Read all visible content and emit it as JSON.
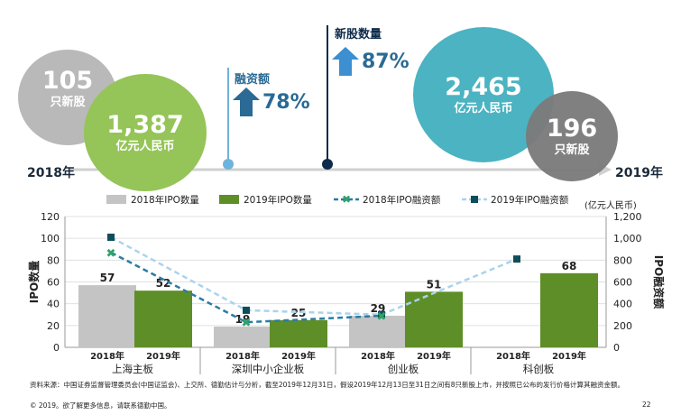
{
  "colors": {
    "gray": "#b3b3b3",
    "darkgray": "#7d7d7d",
    "green": "#93c15a",
    "teal": "#49b5c3",
    "navy": "#2a6a94",
    "lightblue": "#6db4dc",
    "darknavy": "#0d2a4a",
    "bar2019": "#5e8e27",
    "bar2018": "#c4c4c4",
    "line2018": "#2a7ca6",
    "line2019": "#a9d3ec",
    "marker2018": "#2fa36a",
    "marker2019": "#0e4e5a"
  },
  "timeline": {
    "start_label": "2018年",
    "end_label": "2019年"
  },
  "bubbles": {
    "ipo_count_2018": {
      "value": "105",
      "unit": "只新股"
    },
    "funds_2018": {
      "value": "1,387",
      "unit": "亿元人民币"
    },
    "funds_2019": {
      "value": "2,465",
      "unit": "亿元人民币"
    },
    "ipo_count_2019": {
      "value": "196",
      "unit": "只新股"
    }
  },
  "growth": {
    "funds": {
      "label": "融资额",
      "pct": "78%"
    },
    "count": {
      "label": "新股数量",
      "pct": "87%"
    }
  },
  "chart_data": {
    "type": "bar",
    "categories": [
      "上海主板",
      "深圳中小企业板",
      "创业板",
      "科创板"
    ],
    "sub_labels": [
      "2018年",
      "2019年"
    ],
    "series": [
      {
        "name": "2018年IPO数量",
        "kind": "bar",
        "values": [
          57,
          19,
          29,
          null
        ],
        "axis": "left"
      },
      {
        "name": "2019年IPO数量",
        "kind": "bar",
        "values": [
          52,
          25,
          51,
          68
        ],
        "axis": "left"
      },
      {
        "name": "2018年IPO融资额",
        "kind": "line",
        "values": [
          870,
          230,
          290,
          null
        ],
        "axis": "right"
      },
      {
        "name": "2019年IPO融资额",
        "kind": "line",
        "values": [
          1010,
          340,
          300,
          810
        ],
        "axis": "right"
      }
    ],
    "ylabel": "IPO数量",
    "y2label": "IPO融资额",
    "y2unit": "(亿元人民币)",
    "ylim": [
      0,
      120
    ],
    "y2lim": [
      0,
      1200
    ],
    "yticks": [
      "0",
      "20",
      "40",
      "60",
      "80",
      "100",
      "120"
    ],
    "y2ticks": [
      "0",
      "200",
      "400",
      "600",
      "800",
      "1,000",
      "1,200"
    ],
    "legend_position": "top"
  },
  "footer": {
    "source": "资料来源：中国证券监督管理委员会(中国证监会)、上交所、德勤估计与分析，截至2019年12月31日，假设2019年12月13日至31日之间有8只新股上市，并按照已公布的发行价格计算其融资金额。",
    "copyright": "© 2019。欲了解更多信息，请联系德勤中国。",
    "page": "22"
  }
}
